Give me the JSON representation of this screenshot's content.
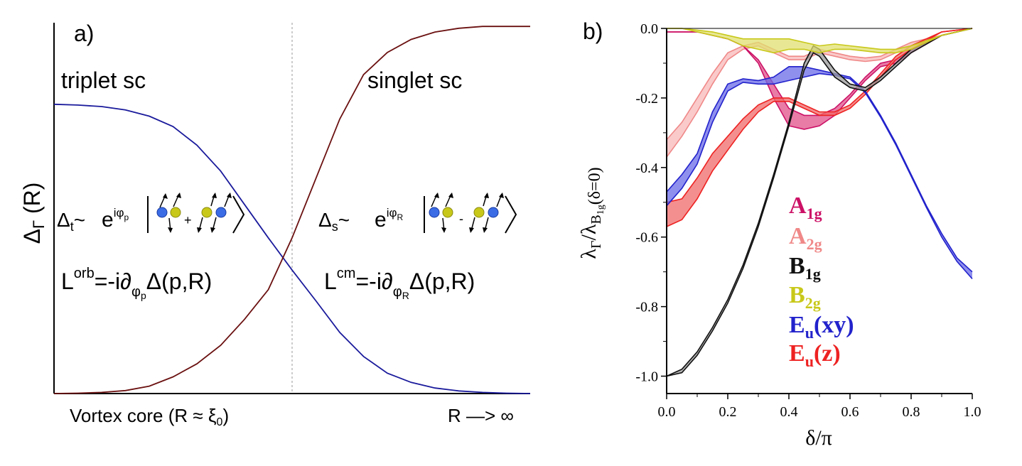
{
  "chart_data": [
    {
      "panel": "a)",
      "type": "line",
      "ylabel": "ΔΓ (R)",
      "ylabel_main": "Δ",
      "ylabel_sub": "Γ",
      "ylabel_tail": " (R)",
      "xlabel_left": "Vortex core (R ≈ ξ₀)",
      "xlabel_left_main": "Vortex core (R ≈ ξ",
      "xlabel_left_sub": "0",
      "xlabel_left_tail": ")",
      "xlabel_right": "R —> ∞",
      "region_left": "triplet sc",
      "region_right": "singlet sc",
      "crossing_x": 0.5,
      "x_range": [
        0,
        1
      ],
      "y_range": [
        0,
        1
      ],
      "eq_triplet": {
        "delta": "Δ",
        "sub": "t",
        "tilde": "~",
        "exp": "e",
        "exp_sup": "iφ",
        "exp_sup_sub": "p",
        "operator": "+"
      },
      "eq_singlet": {
        "delta": "Δ",
        "sub": "s",
        "tilde": "~",
        "exp": "e",
        "exp_sup": "iφ",
        "exp_sup_sub": "R",
        "operator": "-"
      },
      "eq_Lorb": {
        "L": "L",
        "sup": "orb",
        "mid": "=-i∂",
        "sub": "φ",
        "subsub": "p",
        "tail": "Δ(p,R)"
      },
      "eq_Lcm": {
        "L": "L",
        "sup": "cm",
        "mid": "=-i∂",
        "sub": "φ",
        "subsub": "R",
        "tail": "Δ(p,R)"
      },
      "series": [
        {
          "name": "triplet",
          "color": "#1a1a9c",
          "x": [
            0,
            0.05,
            0.1,
            0.15,
            0.2,
            0.25,
            0.3,
            0.35,
            0.4,
            0.45,
            0.5,
            0.55,
            0.6,
            0.65,
            0.7,
            0.75,
            0.8,
            0.85,
            0.9,
            0.95,
            1.0
          ],
          "y": [
            0.78,
            0.778,
            0.774,
            0.765,
            0.748,
            0.72,
            0.67,
            0.6,
            0.51,
            0.42,
            0.333,
            0.25,
            0.165,
            0.1,
            0.055,
            0.03,
            0.015,
            0.007,
            0.003,
            0.001,
            0.0
          ]
        },
        {
          "name": "singlet",
          "color": "#6b1010",
          "x": [
            0,
            0.05,
            0.1,
            0.15,
            0.2,
            0.25,
            0.3,
            0.35,
            0.4,
            0.45,
            0.5,
            0.55,
            0.6,
            0.65,
            0.7,
            0.75,
            0.8,
            0.85,
            0.9,
            0.95,
            1.0
          ],
          "y": [
            0.0,
            0.001,
            0.003,
            0.008,
            0.02,
            0.045,
            0.08,
            0.13,
            0.2,
            0.28,
            0.42,
            0.58,
            0.74,
            0.86,
            0.92,
            0.955,
            0.975,
            0.985,
            0.99,
            0.99,
            0.99
          ]
        }
      ]
    },
    {
      "panel": "b)",
      "type": "line",
      "xlabel": "δ/π",
      "ylabel": "λΓ/λB1g(δ=0)",
      "ylabel_parts": {
        "lam1": "λ",
        "sub1": "Γ",
        "slash": "/λ",
        "sub2": "B",
        "sub2sub": "1g",
        "tail": "(δ=0)"
      },
      "x_range": [
        0,
        1
      ],
      "y_range": [
        -1.05,
        0
      ],
      "x_ticks": [
        "0.0",
        "0.2",
        "0.4",
        "0.6",
        "0.8",
        "1.0"
      ],
      "x_tick_values": [
        0,
        0.2,
        0.4,
        0.6,
        0.8,
        1.0
      ],
      "y_ticks": [
        "0.0",
        "-0.2",
        "-0.4",
        "-0.6",
        "-0.8",
        "-1.0"
      ],
      "y_tick_values": [
        0,
        -0.2,
        -0.4,
        -0.6,
        -0.8,
        -1.0
      ],
      "legend": [
        {
          "main": "A",
          "sub": "1g",
          "color": "#cc1166"
        },
        {
          "main": "A",
          "sub": "2g",
          "color": "#f08888"
        },
        {
          "main": "B",
          "sub": "1g",
          "color": "#111111"
        },
        {
          "main": "B",
          "sub": "2g",
          "color": "#c8c81a"
        },
        {
          "main": "E",
          "sub": "u",
          "tail": "(xy)",
          "color": "#2222cc"
        },
        {
          "main": "E",
          "sub": "u",
          "tail": "(z)",
          "color": "#ee2222"
        }
      ],
      "series": [
        {
          "name": "A1g",
          "color": "#cc1166",
          "fill": "#e0508a",
          "x": [
            0,
            0.1,
            0.2,
            0.25,
            0.3,
            0.35,
            0.4,
            0.45,
            0.5,
            0.55,
            0.6,
            0.65,
            0.7,
            0.75,
            0.8,
            0.9,
            1.0
          ],
          "upper": [
            -0.01,
            -0.01,
            -0.03,
            -0.05,
            -0.09,
            -0.16,
            -0.23,
            -0.25,
            -0.25,
            -0.23,
            -0.19,
            -0.14,
            -0.1,
            -0.09,
            -0.06,
            -0.02,
            0.0
          ],
          "lower": [
            -0.01,
            -0.01,
            -0.03,
            -0.05,
            -0.1,
            -0.2,
            -0.28,
            -0.29,
            -0.28,
            -0.25,
            -0.2,
            -0.15,
            -0.11,
            -0.1,
            -0.07,
            -0.02,
            0.0
          ]
        },
        {
          "name": "A2g",
          "color": "#f08888",
          "fill": "#f8b8b8",
          "x": [
            0,
            0.05,
            0.1,
            0.15,
            0.2,
            0.25,
            0.3,
            0.35,
            0.4,
            0.45,
            0.5,
            0.55,
            0.6,
            0.65,
            0.7,
            0.75,
            0.8,
            0.9,
            1.0
          ],
          "upper": [
            -0.32,
            -0.27,
            -0.2,
            -0.13,
            -0.07,
            -0.05,
            -0.04,
            -0.06,
            -0.08,
            -0.08,
            -0.06,
            -0.07,
            -0.08,
            -0.085,
            -0.08,
            -0.06,
            -0.04,
            -0.02,
            0.0
          ],
          "lower": [
            -0.37,
            -0.31,
            -0.24,
            -0.16,
            -0.09,
            -0.06,
            -0.05,
            -0.07,
            -0.09,
            -0.09,
            -0.07,
            -0.08,
            -0.09,
            -0.095,
            -0.09,
            -0.07,
            -0.05,
            -0.02,
            0.0
          ]
        },
        {
          "name": "B1g",
          "color": "#111111",
          "fill": "#9a9a9a",
          "x": [
            0,
            0.05,
            0.1,
            0.15,
            0.2,
            0.25,
            0.3,
            0.35,
            0.4,
            0.45,
            0.48,
            0.5,
            0.55,
            0.6,
            0.65,
            0.7,
            0.75,
            0.8,
            0.9,
            1.0
          ],
          "upper": [
            -1.0,
            -0.98,
            -0.93,
            -0.86,
            -0.78,
            -0.68,
            -0.56,
            -0.42,
            -0.27,
            -0.1,
            -0.05,
            -0.06,
            -0.12,
            -0.16,
            -0.17,
            -0.14,
            -0.1,
            -0.06,
            -0.02,
            0.0
          ],
          "lower": [
            -1.0,
            -0.99,
            -0.94,
            -0.87,
            -0.79,
            -0.69,
            -0.57,
            -0.43,
            -0.28,
            -0.12,
            -0.07,
            -0.08,
            -0.14,
            -0.17,
            -0.18,
            -0.15,
            -0.11,
            -0.07,
            -0.02,
            0.0
          ]
        },
        {
          "name": "B2g",
          "color": "#c8c81a",
          "fill": "#e0e070",
          "x": [
            0,
            0.05,
            0.1,
            0.15,
            0.2,
            0.25,
            0.3,
            0.35,
            0.4,
            0.45,
            0.5,
            0.55,
            0.6,
            0.65,
            0.7,
            0.75,
            0.8,
            0.9,
            1.0
          ],
          "upper": [
            0.0,
            0.0,
            -0.005,
            -0.01,
            -0.02,
            -0.03,
            -0.03,
            -0.03,
            -0.03,
            -0.04,
            -0.05,
            -0.045,
            -0.05,
            -0.055,
            -0.06,
            -0.06,
            -0.05,
            -0.02,
            0.0
          ],
          "lower": [
            0.0,
            0.0,
            -0.01,
            -0.02,
            -0.03,
            -0.05,
            -0.06,
            -0.07,
            -0.06,
            -0.06,
            -0.07,
            -0.06,
            -0.06,
            -0.065,
            -0.07,
            -0.07,
            -0.06,
            -0.02,
            0.0
          ]
        },
        {
          "name": "Eu(xy)",
          "color": "#2222cc",
          "fill": "#6a6ae8",
          "x": [
            0,
            0.05,
            0.1,
            0.15,
            0.2,
            0.25,
            0.3,
            0.35,
            0.4,
            0.45,
            0.5,
            0.55,
            0.6,
            0.65,
            0.7,
            0.75,
            0.8,
            0.85,
            0.9,
            0.95,
            1.0
          ],
          "upper": [
            -0.47,
            -0.42,
            -0.36,
            -0.24,
            -0.16,
            -0.145,
            -0.15,
            -0.14,
            -0.11,
            -0.11,
            -0.12,
            -0.13,
            -0.14,
            -0.18,
            -0.25,
            -0.33,
            -0.42,
            -0.51,
            -0.59,
            -0.66,
            -0.7
          ],
          "lower": [
            -0.51,
            -0.46,
            -0.39,
            -0.27,
            -0.18,
            -0.155,
            -0.16,
            -0.16,
            -0.15,
            -0.14,
            -0.13,
            -0.135,
            -0.145,
            -0.185,
            -0.255,
            -0.335,
            -0.425,
            -0.515,
            -0.6,
            -0.67,
            -0.72
          ]
        },
        {
          "name": "Eu(z)",
          "color": "#ee2222",
          "fill": "#f06a6a",
          "x": [
            0,
            0.05,
            0.1,
            0.15,
            0.2,
            0.25,
            0.3,
            0.35,
            0.4,
            0.45,
            0.5,
            0.55,
            0.6,
            0.65,
            0.7,
            0.75,
            0.8,
            0.9,
            1.0
          ],
          "upper": [
            -0.5,
            -0.49,
            -0.43,
            -0.36,
            -0.31,
            -0.26,
            -0.22,
            -0.2,
            -0.2,
            -0.22,
            -0.24,
            -0.24,
            -0.22,
            -0.18,
            -0.13,
            -0.08,
            -0.05,
            -0.01,
            0.0
          ],
          "lower": [
            -0.57,
            -0.55,
            -0.49,
            -0.41,
            -0.35,
            -0.29,
            -0.24,
            -0.21,
            -0.21,
            -0.23,
            -0.25,
            -0.25,
            -0.23,
            -0.19,
            -0.14,
            -0.09,
            -0.06,
            -0.01,
            0.0
          ]
        }
      ]
    }
  ]
}
